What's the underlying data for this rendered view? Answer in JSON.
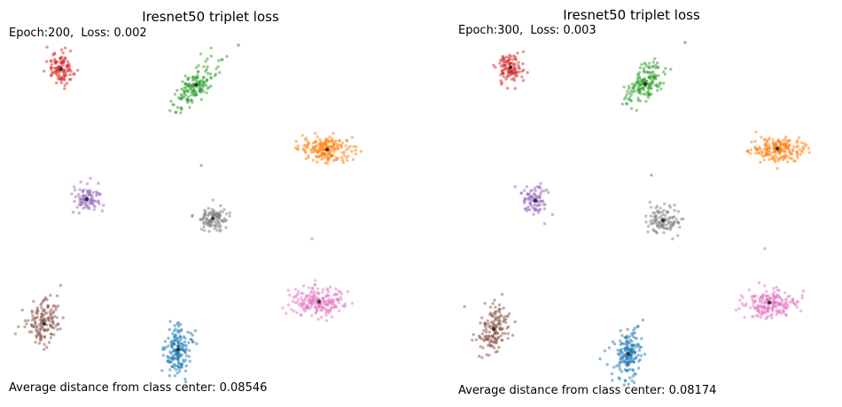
{
  "figure": {
    "panels": [
      {
        "title": "Iresnet50 triplet loss",
        "epoch_text": "Epoch:200,  Loss: 0.002",
        "avg_text": "Average distance from class center: 0.08546"
      },
      {
        "title": "Iresnet50 triplet loss",
        "epoch_text": "Epoch:300,  Loss: 0.003",
        "avg_text": "Average distance from class center: 0.08174"
      }
    ]
  },
  "chart_data": [
    {
      "type": "scatter",
      "title": "Iresnet50 triplet loss",
      "annotations": [
        "Epoch:200,  Loss: 0.002",
        "Average distance from class center: 0.08546"
      ],
      "epoch": 200,
      "loss": 0.002,
      "avg_distance_from_center": 0.08546,
      "axes_visible": false,
      "grid": false,
      "xlim": [
        0,
        475
      ],
      "ylim": [
        460,
        0
      ],
      "clusters": [
        {
          "color": "#d62728",
          "center": [
            69,
            78
          ],
          "spread": [
            8,
            9
          ],
          "rotation": 0,
          "points": 110
        },
        {
          "color": "#2ca02c",
          "center": [
            221,
            96
          ],
          "spread": [
            7,
            15
          ],
          "rotation": 40,
          "points": 160
        },
        {
          "color": "#ff7f0e",
          "center": [
            369,
            169
          ],
          "spread": [
            15,
            7
          ],
          "rotation": 0,
          "points": 190
        },
        {
          "color": "#9467bd",
          "center": [
            98,
            225
          ],
          "spread": [
            8,
            8
          ],
          "rotation": 0,
          "points": 90
        },
        {
          "color": "#7f7f7f",
          "center": [
            240,
            247
          ],
          "spread": [
            9,
            7
          ],
          "rotation": 0,
          "points": 110
        },
        {
          "color": "#8c564b",
          "center": [
            50,
            366
          ],
          "spread": [
            9,
            14
          ],
          "rotation": 20,
          "points": 150
        },
        {
          "color": "#e377c2",
          "center": [
            360,
            341
          ],
          "spread": [
            15,
            8
          ],
          "rotation": 0,
          "points": 200
        },
        {
          "color": "#1f77b4",
          "center": [
            201,
            395
          ],
          "spread": [
            8,
            14
          ],
          "rotation": 0,
          "points": 170
        }
      ],
      "outliers": [
        {
          "color": "#2ca02c",
          "point": [
            269,
            51
          ]
        },
        {
          "color": "#7f7f7f",
          "point": [
            227,
            187
          ]
        },
        {
          "color": "#e377c2",
          "point": [
            352,
            270
          ]
        }
      ]
    },
    {
      "type": "scatter",
      "title": "Iresnet50 triplet loss",
      "annotations": [
        "Epoch:300,  Loss: 0.003",
        "Average distance from class center: 0.08174"
      ],
      "epoch": 300,
      "loss": 0.003,
      "avg_distance_from_center": 0.08174,
      "axes_visible": false,
      "grid": false,
      "xlim": [
        0,
        475
      ],
      "ylim": [
        460,
        0
      ],
      "clusters": [
        {
          "color": "#d62728",
          "center": [
            101,
            76
          ],
          "spread": [
            8,
            9
          ],
          "rotation": 0,
          "points": 110
        },
        {
          "color": "#2ca02c",
          "center": [
            253,
            95
          ],
          "spread": [
            7,
            15
          ],
          "rotation": 40,
          "points": 160
        },
        {
          "color": "#ff7f0e",
          "center": [
            402,
            168
          ],
          "spread": [
            15,
            7
          ],
          "rotation": 0,
          "points": 190
        },
        {
          "color": "#9467bd",
          "center": [
            129,
            227
          ],
          "spread": [
            8,
            8
          ],
          "rotation": 0,
          "points": 90
        },
        {
          "color": "#7f7f7f",
          "center": [
            273,
            249
          ],
          "spread": [
            9,
            7
          ],
          "rotation": 0,
          "points": 110
        },
        {
          "color": "#8c564b",
          "center": [
            82,
            372
          ],
          "spread": [
            9,
            14
          ],
          "rotation": 20,
          "points": 150
        },
        {
          "color": "#e377c2",
          "center": [
            393,
            342
          ],
          "spread": [
            15,
            8
          ],
          "rotation": 0,
          "points": 200
        },
        {
          "color": "#1f77b4",
          "center": [
            234,
            400
          ],
          "spread": [
            8,
            14
          ],
          "rotation": 0,
          "points": 170
        }
      ],
      "outliers": [
        {
          "color": "#2ca02c",
          "point": [
            298,
            48
          ]
        },
        {
          "color": "#7f7f7f",
          "point": [
            260,
            198
          ]
        },
        {
          "color": "#e377c2",
          "point": [
            388,
            281
          ]
        }
      ]
    }
  ]
}
